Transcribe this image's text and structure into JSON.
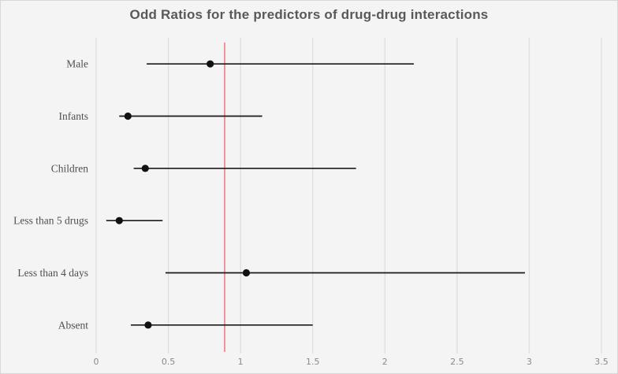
{
  "figure": {
    "title": "Odd Ratios for the predictors of drug-drug interactions"
  },
  "chart_data": {
    "type": "scatter",
    "subtype": "forest_plot",
    "title": "Odd Ratios for the predictors of drug-drug interactions",
    "xlabel": "",
    "ylabel": "",
    "categories": [
      "Male",
      "Infants",
      "Children",
      "Less than 5 drugs",
      "Less than 4 days",
      "Absent"
    ],
    "series": [
      {
        "name": "Odds ratio with 95% CI",
        "points": [
          {
            "category": "Male",
            "estimate": 0.79,
            "ci_low": 0.35,
            "ci_high": 2.2
          },
          {
            "category": "Infants",
            "estimate": 0.22,
            "ci_low": 0.16,
            "ci_high": 1.15
          },
          {
            "category": "Children",
            "estimate": 0.34,
            "ci_low": 0.26,
            "ci_high": 1.8
          },
          {
            "category": "Less than 5 drugs",
            "estimate": 0.16,
            "ci_low": 0.07,
            "ci_high": 0.46
          },
          {
            "category": "Less than 4 days",
            "estimate": 1.04,
            "ci_low": 0.48,
            "ci_high": 2.97
          },
          {
            "category": "Absent",
            "estimate": 0.36,
            "ci_low": 0.24,
            "ci_high": 1.5
          }
        ]
      }
    ],
    "reference_line": {
      "value": 0.89,
      "color": "#ed7d81"
    },
    "xlim": [
      0,
      3.5
    ],
    "x_ticks": [
      0,
      0.5,
      1,
      1.5,
      2,
      2.5,
      3,
      3.5
    ],
    "x_tick_labels": [
      "0",
      "0.5",
      "1",
      "1.5",
      "2",
      "2.5",
      "3",
      "3.5"
    ],
    "grid": true,
    "legend": "none",
    "colors": {
      "background": "#f4f4f4",
      "gridline": "#dedede",
      "marker": "#111111",
      "ci_line": "#1a1a1a",
      "title_text": "#595959",
      "tick_text": "#8a8a8a",
      "category_text": "#4f4f4f",
      "reference": "#ed7d81"
    }
  }
}
